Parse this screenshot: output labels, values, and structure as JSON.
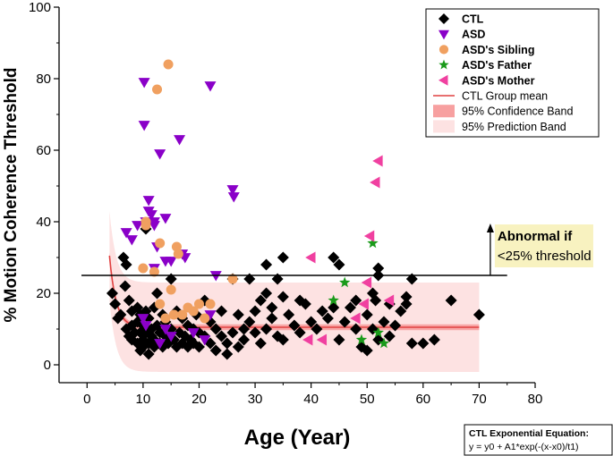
{
  "chart_data": {
    "type": "scatter",
    "title": "",
    "xlabel": "Age (Year)",
    "ylabel": "% Motion Coherence Threshold",
    "xlim": [
      -5,
      80
    ],
    "ylim": [
      -5,
      100
    ],
    "xticks": [
      0,
      10,
      20,
      30,
      40,
      50,
      60,
      70,
      80
    ],
    "yticks": [
      0,
      20,
      40,
      60,
      80,
      100
    ],
    "legend": {
      "position": "top-right",
      "entries": [
        {
          "label": "CTL",
          "marker": "diamond",
          "color": "#000000",
          "bold": true
        },
        {
          "label": "ASD",
          "marker": "triangle-down",
          "color": "#8a00c8",
          "bold": true
        },
        {
          "label": "ASD's Sibling",
          "marker": "circle",
          "color": "#f0a060",
          "bold": true
        },
        {
          "label": "ASD's Father",
          "marker": "star",
          "color": "#1a9a1a",
          "bold": true
        },
        {
          "label": "ASD's Mother",
          "marker": "triangle-left",
          "color": "#f040a0",
          "bold": true
        },
        {
          "label": "CTL Group mean",
          "marker": "line",
          "color": "#e04040",
          "bold": false
        },
        {
          "label": "95% Confidence Band",
          "marker": "band",
          "color": "#f7a0a0",
          "bold": false
        },
        {
          "label": "95% Prediction Band",
          "marker": "band",
          "color": "#fde2e2",
          "bold": false
        }
      ]
    },
    "threshold_line": {
      "y": 25,
      "x_range": [
        -1,
        75
      ]
    },
    "annotation": {
      "line1": "Abnormal if",
      "line2": "<25% threshold",
      "arrow_x": 72,
      "arrow_from_y": 25,
      "arrow_to_y": 39
    },
    "equation": {
      "title": "CTL Exponential Equation:",
      "formula": "y = y0 + A1*exp(-(x-x0)/t1)"
    },
    "fit": {
      "y0": 10.5,
      "A1": 20,
      "x0": 4,
      "t1": 1.2,
      "x_range": [
        4,
        70
      ],
      "conf_halfwidth": 0.8,
      "pred_halfwidth": 12.5
    },
    "series": [
      {
        "name": "CTL",
        "marker": "diamond",
        "color": "#000000",
        "points": [
          [
            4.5,
            20
          ],
          [
            5,
            17
          ],
          [
            5.5,
            13
          ],
          [
            6,
            14
          ],
          [
            6.5,
            30
          ],
          [
            7,
            28
          ],
          [
            6.8,
            22
          ],
          [
            7.5,
            18
          ],
          [
            7,
            10
          ],
          [
            7.5,
            8
          ],
          [
            8,
            15
          ],
          [
            8,
            11
          ],
          [
            8,
            7
          ],
          [
            8.5,
            9
          ],
          [
            9,
            16
          ],
          [
            9,
            12
          ],
          [
            9,
            6
          ],
          [
            9.5,
            14
          ],
          [
            9.5,
            9
          ],
          [
            9.5,
            4
          ],
          [
            10,
            11
          ],
          [
            10,
            7
          ],
          [
            10,
            5
          ],
          [
            10.5,
            38
          ],
          [
            10.5,
            15
          ],
          [
            10.5,
            9
          ],
          [
            11,
            13
          ],
          [
            11,
            6
          ],
          [
            11,
            3
          ],
          [
            11.5,
            10
          ],
          [
            11.5,
            8
          ],
          [
            12,
            16
          ],
          [
            12,
            7
          ],
          [
            12,
            5
          ],
          [
            12.5,
            20
          ],
          [
            12.5,
            11
          ],
          [
            13,
            9
          ],
          [
            13,
            6
          ],
          [
            13.5,
            14
          ],
          [
            13.5,
            5
          ],
          [
            14,
            8
          ],
          [
            14,
            12
          ],
          [
            14.5,
            6
          ],
          [
            15,
            24
          ],
          [
            15,
            10
          ],
          [
            15.5,
            7
          ],
          [
            16,
            15
          ],
          [
            16,
            5
          ],
          [
            16.5,
            9
          ],
          [
            17,
            13
          ],
          [
            17,
            6
          ],
          [
            17.5,
            8
          ],
          [
            18,
            11
          ],
          [
            18,
            5
          ],
          [
            18.5,
            7
          ],
          [
            19,
            10
          ],
          [
            19,
            6
          ],
          [
            19.5,
            14
          ],
          [
            20,
            9
          ],
          [
            20,
            5
          ],
          [
            21,
            18
          ],
          [
            21,
            8
          ],
          [
            22,
            6
          ],
          [
            22,
            12
          ],
          [
            23,
            10
          ],
          [
            23,
            4
          ],
          [
            24,
            8
          ],
          [
            24,
            15
          ],
          [
            25,
            6
          ],
          [
            25,
            3
          ],
          [
            26,
            9
          ],
          [
            26,
            24
          ],
          [
            27,
            14
          ],
          [
            27,
            5
          ],
          [
            28,
            10
          ],
          [
            28,
            7
          ],
          [
            29,
            12
          ],
          [
            29,
            24
          ],
          [
            30,
            15
          ],
          [
            30,
            9
          ],
          [
            31,
            18
          ],
          [
            31,
            6
          ],
          [
            32,
            28
          ],
          [
            32,
            20
          ],
          [
            32,
            10
          ],
          [
            33,
            13
          ],
          [
            33,
            16
          ],
          [
            34,
            8
          ],
          [
            34,
            24
          ],
          [
            35,
            30
          ],
          [
            35,
            19
          ],
          [
            35,
            7
          ],
          [
            36,
            14
          ],
          [
            37,
            11
          ],
          [
            38,
            9
          ],
          [
            38,
            18
          ],
          [
            39,
            17
          ],
          [
            40,
            12
          ],
          [
            41,
            10
          ],
          [
            42,
            15
          ],
          [
            43,
            13
          ],
          [
            44,
            30
          ],
          [
            44,
            16
          ],
          [
            45,
            28
          ],
          [
            45,
            7
          ],
          [
            46,
            12
          ],
          [
            47,
            16
          ],
          [
            48,
            10
          ],
          [
            48,
            18
          ],
          [
            49,
            5
          ],
          [
            50,
            4
          ],
          [
            50,
            14
          ],
          [
            51,
            20
          ],
          [
            51,
            10
          ],
          [
            51.5,
            18
          ],
          [
            52,
            25
          ],
          [
            52,
            27
          ],
          [
            52,
            7
          ],
          [
            53,
            12
          ],
          [
            54,
            8
          ],
          [
            54,
            17
          ],
          [
            55,
            11
          ],
          [
            56,
            15
          ],
          [
            57,
            19
          ],
          [
            57,
            17
          ],
          [
            58,
            24
          ],
          [
            58,
            6
          ],
          [
            60,
            6
          ],
          [
            62,
            7
          ],
          [
            65,
            18
          ],
          [
            70,
            14
          ]
        ]
      },
      {
        "name": "ASD",
        "marker": "triangle-down",
        "color": "#8a00c8",
        "points": [
          [
            10.2,
            79
          ],
          [
            10.2,
            67
          ],
          [
            11,
            46
          ],
          [
            11,
            43
          ],
          [
            11.5,
            42
          ],
          [
            12,
            40
          ],
          [
            10.5,
            40
          ],
          [
            12,
            39
          ],
          [
            9,
            39
          ],
          [
            7,
            37
          ],
          [
            8,
            35
          ],
          [
            12,
            27
          ],
          [
            14,
            41
          ],
          [
            16.5,
            63
          ],
          [
            13,
            59
          ],
          [
            12.5,
            33
          ],
          [
            14,
            29
          ],
          [
            15,
            29
          ],
          [
            17,
            31
          ],
          [
            17.5,
            30
          ],
          [
            22,
            78
          ],
          [
            23,
            25
          ],
          [
            26,
            49
          ],
          [
            26.2,
            47
          ],
          [
            22,
            14
          ],
          [
            10,
            13
          ],
          [
            10.5,
            11
          ],
          [
            14,
            10
          ],
          [
            13,
            6
          ],
          [
            15,
            8
          ],
          [
            19,
            9
          ],
          [
            21,
            7
          ]
        ]
      },
      {
        "name": "ASD's Sibling",
        "marker": "circle",
        "color": "#f0a060",
        "points": [
          [
            14.5,
            84
          ],
          [
            12.5,
            77
          ],
          [
            10.5,
            40
          ],
          [
            10.5,
            39
          ],
          [
            13,
            34
          ],
          [
            16,
            33
          ],
          [
            16.3,
            31
          ],
          [
            10,
            27
          ],
          [
            12,
            26
          ],
          [
            15,
            21
          ],
          [
            13,
            17
          ],
          [
            18,
            16
          ],
          [
            19,
            15
          ],
          [
            20,
            17
          ],
          [
            22,
            17
          ],
          [
            21,
            13
          ],
          [
            15.5,
            14
          ],
          [
            17,
            14
          ],
          [
            26,
            24
          ],
          [
            14,
            13
          ]
        ]
      },
      {
        "name": "ASD's Father",
        "marker": "star",
        "color": "#1a9a1a",
        "points": [
          [
            46,
            23
          ],
          [
            44,
            18
          ],
          [
            51,
            34
          ],
          [
            49,
            7
          ],
          [
            52,
            9
          ],
          [
            53,
            6
          ]
        ]
      },
      {
        "name": "ASD's Mother",
        "marker": "triangle-left",
        "color": "#f040a0",
        "points": [
          [
            52,
            57
          ],
          [
            51.5,
            51
          ],
          [
            50.5,
            36
          ],
          [
            40,
            30
          ],
          [
            42,
            7
          ],
          [
            39.5,
            7
          ],
          [
            48,
            13
          ],
          [
            50,
            23
          ],
          [
            49.5,
            17
          ],
          [
            54,
            18
          ]
        ]
      }
    ]
  }
}
